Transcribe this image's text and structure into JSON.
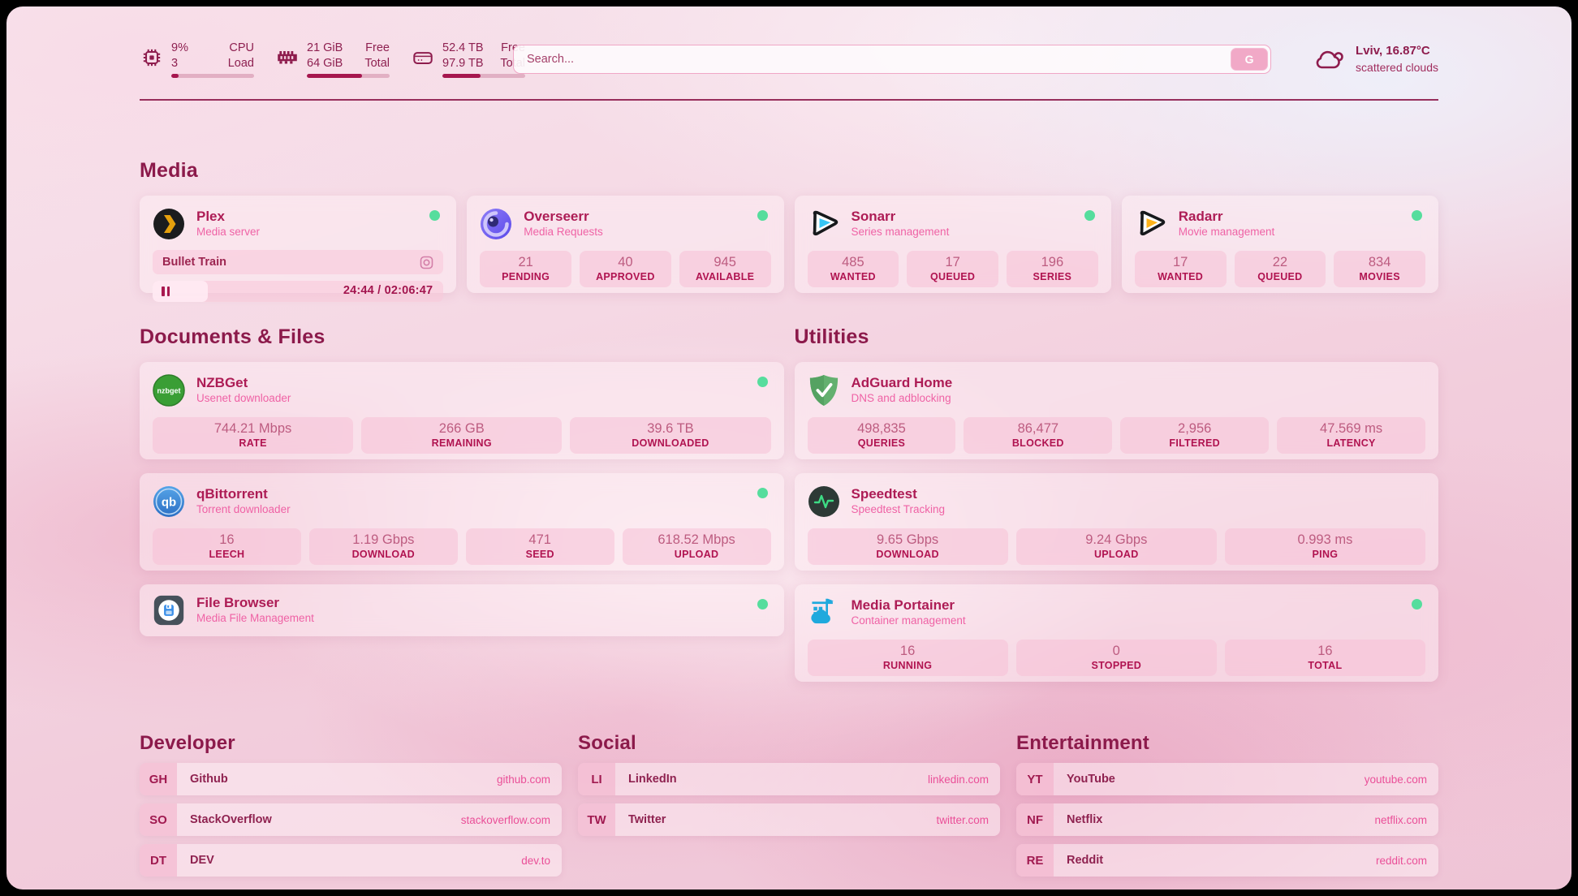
{
  "header": {
    "stats": [
      {
        "icon": "cpu-icon",
        "v1": "9%",
        "l1": "CPU",
        "v2": "3",
        "l2": "Load",
        "progress": 9
      },
      {
        "icon": "ram-icon",
        "v1": "21 GiB",
        "l1": "Free",
        "v2": "64 GiB",
        "l2": "Total",
        "progress": 67
      },
      {
        "icon": "disk-icon",
        "v1": "52.4 TB",
        "l1": "Free",
        "v2": "97.9 TB",
        "l2": "Total",
        "progress": 46
      }
    ],
    "search": {
      "placeholder": "Search...",
      "button": "G"
    },
    "weather": {
      "icon": "cloud-icon",
      "line1": "Lviv, 16.87°C",
      "line2": "scattered clouds"
    }
  },
  "media": {
    "title": "Media",
    "plex": {
      "icon": "plex-icon",
      "name": "Plex",
      "desc": "Media server",
      "online": true,
      "now_playing": {
        "title": "Bullet Train",
        "time": "24:44 / 02:06:47",
        "progress": 19
      }
    },
    "cards": [
      {
        "icon": "overseerr-icon",
        "name": "Overseerr",
        "desc": "Media Requests",
        "online": true,
        "stats": [
          {
            "value": "21",
            "label": "PENDING"
          },
          {
            "value": "40",
            "label": "APPROVED"
          },
          {
            "value": "945",
            "label": "AVAILABLE"
          }
        ]
      },
      {
        "icon": "sonarr-icon",
        "name": "Sonarr",
        "desc": "Series management",
        "online": true,
        "stats": [
          {
            "value": "485",
            "label": "WANTED"
          },
          {
            "value": "17",
            "label": "QUEUED"
          },
          {
            "value": "196",
            "label": "SERIES"
          }
        ]
      },
      {
        "icon": "radarr-icon",
        "name": "Radarr",
        "desc": "Movie management",
        "online": true,
        "stats": [
          {
            "value": "17",
            "label": "WANTED"
          },
          {
            "value": "22",
            "label": "QUEUED"
          },
          {
            "value": "834",
            "label": "MOVIES"
          }
        ]
      }
    ]
  },
  "documents": {
    "title": "Documents & Files",
    "cards": [
      {
        "icon": "nzbget-icon",
        "name": "NZBGet",
        "desc": "Usenet downloader",
        "online": true,
        "stats": [
          {
            "value": "744.21 Mbps",
            "label": "RATE"
          },
          {
            "value": "266 GB",
            "label": "REMAINING"
          },
          {
            "value": "39.6 TB",
            "label": "DOWNLOADED"
          }
        ]
      },
      {
        "icon": "qbittorrent-icon",
        "name": "qBittorrent",
        "desc": "Torrent downloader",
        "online": true,
        "stats": [
          {
            "value": "16",
            "label": "LEECH"
          },
          {
            "value": "1.19 Gbps",
            "label": "DOWNLOAD"
          },
          {
            "value": "471",
            "label": "SEED"
          },
          {
            "value": "618.52 Mbps",
            "label": "UPLOAD"
          }
        ]
      },
      {
        "icon": "filebrowser-icon",
        "name": "File Browser",
        "desc": "Media File Management",
        "online": true,
        "stats": []
      }
    ]
  },
  "utilities": {
    "title": "Utilities",
    "cards": [
      {
        "icon": "adguard-icon",
        "name": "AdGuard Home",
        "desc": "DNS and adblocking",
        "online": false,
        "stats": [
          {
            "value": "498,835",
            "label": "QUERIES"
          },
          {
            "value": "86,477",
            "label": "BLOCKED"
          },
          {
            "value": "2,956",
            "label": "FILTERED"
          },
          {
            "value": "47.569 ms",
            "label": "LATENCY"
          }
        ]
      },
      {
        "icon": "speedtest-icon",
        "name": "Speedtest",
        "desc": "Speedtest Tracking",
        "online": false,
        "stats": [
          {
            "value": "9.65 Gbps",
            "label": "DOWNLOAD"
          },
          {
            "value": "9.24 Gbps",
            "label": "UPLOAD"
          },
          {
            "value": "0.993 ms",
            "label": "PING"
          }
        ]
      },
      {
        "icon": "portainer-icon",
        "name": "Media Portainer",
        "desc": "Container management",
        "online": true,
        "stats": [
          {
            "value": "16",
            "label": "RUNNING"
          },
          {
            "value": "0",
            "label": "STOPPED"
          },
          {
            "value": "16",
            "label": "TOTAL"
          }
        ]
      }
    ]
  },
  "links": {
    "developer": {
      "title": "Developer",
      "items": [
        {
          "abbr": "GH",
          "name": "Github",
          "url": "github.com"
        },
        {
          "abbr": "SO",
          "name": "StackOverflow",
          "url": "stackoverflow.com"
        },
        {
          "abbr": "DT",
          "name": "DEV",
          "url": "dev.to"
        }
      ]
    },
    "social": {
      "title": "Social",
      "items": [
        {
          "abbr": "LI",
          "name": "LinkedIn",
          "url": "linkedin.com"
        },
        {
          "abbr": "TW",
          "name": "Twitter",
          "url": "twitter.com"
        }
      ]
    },
    "entertainment": {
      "title": "Entertainment",
      "items": [
        {
          "abbr": "YT",
          "name": "YouTube",
          "url": "youtube.com"
        },
        {
          "abbr": "NF",
          "name": "Netflix",
          "url": "netflix.com"
        },
        {
          "abbr": "RE",
          "name": "Reddit",
          "url": "reddit.com"
        }
      ]
    }
  },
  "colors": {
    "accent": "#a6164e",
    "title": "#8c1a4b",
    "subtitle": "#ef62a5",
    "stat_label": "#b01350",
    "online_dot": "#56dd9d",
    "link_url": "#ea4f98"
  }
}
